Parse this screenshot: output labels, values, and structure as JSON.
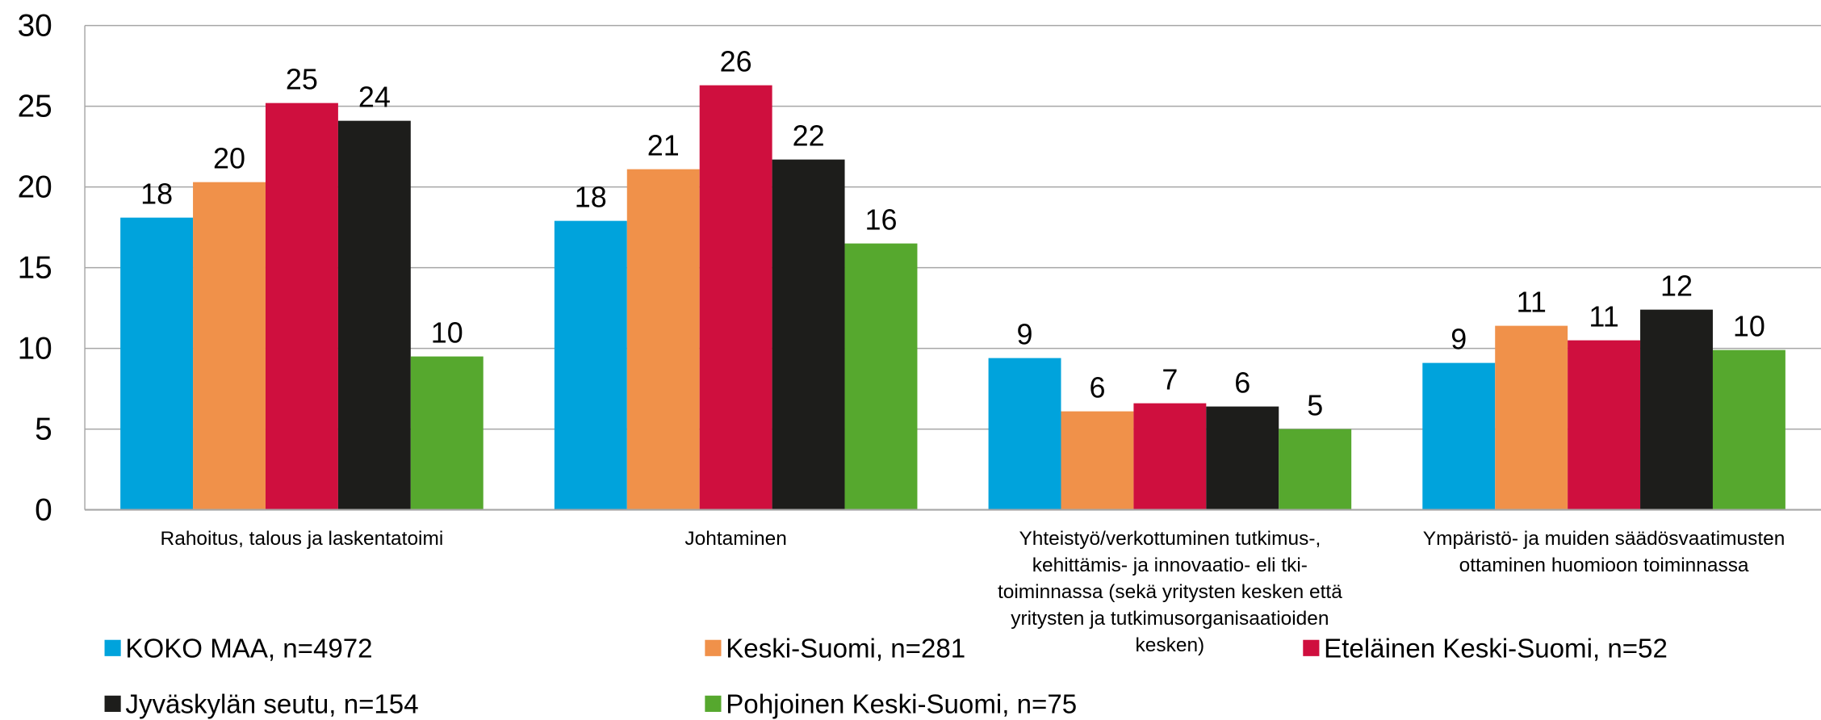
{
  "chart_data": {
    "type": "bar",
    "categories": [
      "Rahoitus, talous ja laskentatoimi",
      "Johtaminen",
      "Yhteistyö/verkottuminen tutkimus-, kehittämis- ja innovaatio- eli tki-toiminnassa (sekä yritysten kesken että yritysten ja tutkimusorganisaatioiden kesken)",
      "Ympäristö- ja muiden säädösvaatimusten ottaminen huomioon toiminnassa"
    ],
    "series": [
      {
        "name": "KOKO MAA, n=4972",
        "color": "#00a3dc",
        "values": [
          18.1,
          17.9,
          9.4,
          9.1
        ],
        "value_labels": [
          "18",
          "18",
          "9",
          "9"
        ]
      },
      {
        "name": "Keski-Suomi, n=281",
        "color": "#f0914a",
        "values": [
          20.3,
          21.1,
          6.1,
          11.4
        ],
        "value_labels": [
          "20",
          "21",
          "6",
          "11"
        ]
      },
      {
        "name": "Eteläinen Keski-Suomi, n=52",
        "color": "#cf0f3e",
        "values": [
          25.2,
          26.3,
          6.6,
          10.5
        ],
        "value_labels": [
          "25",
          "26",
          "7",
          "11"
        ]
      },
      {
        "name": "Jyväskylän seutu, n=154",
        "color": "#1d1d1b",
        "values": [
          24.1,
          21.7,
          6.4,
          12.4
        ],
        "value_labels": [
          "24",
          "22",
          "6",
          "12"
        ]
      },
      {
        "name": "Pohjoinen Keski-Suomi, n=75",
        "color": "#56a82e",
        "values": [
          9.5,
          16.5,
          5.0,
          9.9
        ],
        "value_labels": [
          "10",
          "16",
          "5",
          "10"
        ]
      }
    ],
    "ylim": [
      0,
      30
    ],
    "yticks": [
      0,
      5,
      10,
      15,
      20,
      25,
      30
    ],
    "grid": true,
    "legend": "bottom"
  }
}
